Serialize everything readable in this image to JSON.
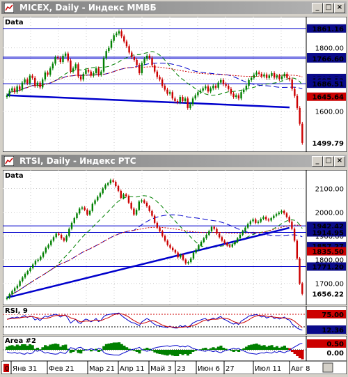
{
  "window1": {
    "title": "MICEX, Daily - Индекс ММВБ",
    "buttons": {
      "minimize": "_",
      "maximize": "□",
      "close": "×"
    }
  },
  "window2": {
    "title": "RTSI, Daily - Индекс РТС",
    "buttons": {
      "minimize": "_",
      "maximize": "□",
      "close": "×"
    }
  },
  "colors": {
    "up": "#008000",
    "down": "#cc0000",
    "trend": "#0000cc",
    "price_label": "#cc0000",
    "level_label": "#0000cc"
  },
  "icons": {
    "window_icon": "chart-icon"
  },
  "x_axis": {
    "start_marker": "0",
    "labels": [
      "Янв 31",
      "Фев 21",
      "Мар 21",
      "Апр 11",
      "Май 3",
      "23",
      "Июн 6",
      "27",
      "Июл 11",
      "Авг 8"
    ]
  },
  "chart_data": [
    {
      "type": "candlestick",
      "panel_label": "Data",
      "name": "MICEX",
      "ylim": [
        1480,
        1885
      ],
      "y_ticks": [
        "1600.00",
        "1700.00",
        "1800.00"
      ],
      "level_labels": [
        "1861.16",
        "1770.50",
        "1766.60",
        "1704.70",
        "1697.13",
        "1686.51"
      ],
      "price_label": "1645.64",
      "last_label": "1499.79",
      "horizontal_levels": [
        1861.16,
        1770.5,
        1766.6,
        1686.51
      ],
      "closes": [
        1650,
        1665,
        1672,
        1660,
        1678,
        1668,
        1690,
        1700,
        1688,
        1712,
        1705,
        1680,
        1690,
        1675,
        1700,
        1722,
        1715,
        1735,
        1750,
        1770,
        1768,
        1755,
        1775,
        1782,
        1760,
        1725,
        1735,
        1748,
        1710,
        1700,
        1718,
        1730,
        1725,
        1712,
        1720,
        1735,
        1715,
        1725,
        1768,
        1790,
        1800,
        1822,
        1840,
        1845,
        1852,
        1836,
        1820,
        1805,
        1785,
        1770,
        1762,
        1746,
        1720,
        1752,
        1765,
        1775,
        1768,
        1745,
        1725,
        1708,
        1700,
        1680,
        1668,
        1655,
        1660,
        1640,
        1632,
        1628,
        1645,
        1632,
        1640,
        1610,
        1622,
        1640,
        1650,
        1660,
        1665,
        1672,
        1678,
        1662,
        1672,
        1680,
        1674,
        1690,
        1698,
        1685,
        1680,
        1670,
        1655,
        1645,
        1650,
        1640,
        1660,
        1668,
        1680,
        1698,
        1705,
        1715,
        1722,
        1718,
        1710,
        1716,
        1705,
        1712,
        1720,
        1706,
        1712,
        1702,
        1710,
        1718,
        1705,
        1700,
        1670,
        1648,
        1610,
        1560,
        1500
      ]
    },
    {
      "type": "candlestick",
      "panel_label": "Data",
      "name": "RTSI",
      "ylim": [
        1620,
        2160
      ],
      "y_ticks": [
        "1700.00",
        "1800.00",
        "1900.00",
        "2000.00",
        "2100.00"
      ],
      "level_labels": [
        "1942.42",
        "1914.95",
        "1857.27",
        "1835.50",
        "1771.20"
      ],
      "price_label": "1835.50",
      "last_label": "1656.22",
      "horizontal_levels": [
        1942.42,
        1914.95,
        1771.2
      ],
      "closes": [
        1640,
        1655,
        1668,
        1680,
        1690,
        1710,
        1725,
        1740,
        1752,
        1765,
        1780,
        1795,
        1800,
        1812,
        1830,
        1850,
        1862,
        1880,
        1895,
        1910,
        1905,
        1890,
        1880,
        1900,
        1930,
        1955,
        1975,
        1995,
        2015,
        2020,
        2010,
        1990,
        2005,
        2035,
        2050,
        2065,
        2080,
        2100,
        2115,
        2122,
        2135,
        2128,
        2110,
        2090,
        2060,
        2075,
        2068,
        2040,
        2015,
        1990,
        2010,
        2045,
        2050,
        2040,
        2025,
        2005,
        1985,
        1955,
        1935,
        1920,
        1900,
        1880,
        1862,
        1850,
        1840,
        1830,
        1810,
        1820,
        1800,
        1785,
        1790,
        1805,
        1830,
        1842,
        1860,
        1875,
        1890,
        1905,
        1920,
        1938,
        1930,
        1910,
        1895,
        1880,
        1870,
        1860,
        1855,
        1865,
        1875,
        1890,
        1905,
        1920,
        1935,
        1950,
        1962,
        1970,
        1955,
        1960,
        1972,
        1980,
        1970,
        1965,
        1975,
        1985,
        1992,
        1998,
        2005,
        1995,
        1980,
        1960,
        1930,
        1880,
        1805,
        1700,
        1656
      ]
    },
    {
      "type": "line",
      "panel_label": "RSI, 9",
      "ylim": [
        0,
        100
      ],
      "level_labels": [
        "75.00",
        "12.36"
      ],
      "upper_level": 75,
      "lower_level": 25,
      "values": [
        55,
        58,
        62,
        60,
        64,
        60,
        66,
        70,
        62,
        68,
        65,
        52,
        58,
        50,
        60,
        68,
        64,
        70,
        72,
        75,
        72,
        64,
        70,
        72,
        58,
        40,
        48,
        55,
        42,
        38,
        50,
        56,
        52,
        45,
        50,
        58,
        46,
        52,
        66,
        72,
        74,
        76,
        78,
        78,
        80,
        70,
        62,
        55,
        48,
        42,
        40,
        35,
        30,
        45,
        52,
        58,
        52,
        42,
        35,
        30,
        28,
        25,
        24,
        22,
        28,
        22,
        20,
        20,
        30,
        25,
        30,
        22,
        30,
        40,
        45,
        50,
        52,
        56,
        58,
        48,
        55,
        60,
        55,
        62,
        66,
        56,
        52,
        46,
        40,
        36,
        40,
        34,
        48,
        54,
        60,
        68,
        70,
        72,
        74,
        70,
        64,
        68,
        60,
        64,
        68,
        58,
        62,
        56,
        60,
        64,
        55,
        52,
        36,
        28,
        20,
        15,
        12
      ]
    },
    {
      "type": "area",
      "panel_label": "Area #2",
      "ylim": [
        -1,
        1
      ],
      "level_labels": [
        "0.50",
        "0.00"
      ],
      "values": [
        0.3,
        0.4,
        0.45,
        0.35,
        0.5,
        0.4,
        0.55,
        0.6,
        0.4,
        0.55,
        0.45,
        0.1,
        0.2,
        0.05,
        0.25,
        0.45,
        0.35,
        0.5,
        0.55,
        0.6,
        0.55,
        0.3,
        0.45,
        0.5,
        0.1,
        -0.3,
        -0.2,
        -0.05,
        -0.3,
        -0.35,
        -0.1,
        0.05,
        0.0,
        -0.15,
        -0.05,
        0.1,
        -0.2,
        -0.1,
        0.35,
        0.55,
        0.6,
        0.65,
        0.7,
        0.7,
        0.72,
        0.55,
        0.4,
        0.25,
        0.1,
        -0.05,
        -0.1,
        -0.2,
        -0.35,
        -0.05,
        0.1,
        0.2,
        0.1,
        -0.1,
        -0.25,
        -0.35,
        -0.4,
        -0.45,
        -0.5,
        -0.55,
        -0.45,
        -0.55,
        -0.6,
        -0.6,
        -0.4,
        -0.5,
        -0.4,
        -0.55,
        -0.4,
        -0.2,
        -0.1,
        0.0,
        0.05,
        0.15,
        0.2,
        0.05,
        0.15,
        0.25,
        0.15,
        0.3,
        0.4,
        0.2,
        0.1,
        0.0,
        -0.1,
        -0.2,
        -0.1,
        -0.2,
        0.05,
        0.15,
        0.3,
        0.45,
        0.5,
        0.55,
        0.6,
        0.5,
        0.4,
        0.45,
        0.3,
        0.4,
        0.45,
        0.25,
        0.35,
        0.2,
        0.3,
        0.4,
        0.2,
        0.15,
        -0.2,
        -0.4,
        -0.6,
        -0.8,
        -0.9
      ]
    }
  ]
}
